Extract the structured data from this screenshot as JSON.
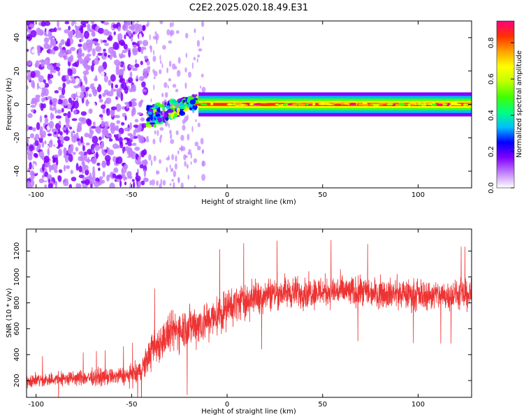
{
  "title": "C2E2.2025.020.18.49.E31",
  "chart_data": [
    {
      "type": "heatmap",
      "xlabel": "Height of straight line (km)",
      "ylabel": "Frequency (Hz)",
      "xlim": [
        -105,
        128
      ],
      "ylim": [
        -50,
        50
      ],
      "x_ticks": [
        -100,
        -50,
        0,
        50,
        100
      ],
      "y_ticks": [
        -40,
        -20,
        0,
        20,
        40
      ],
      "x_tick_labels": [
        "-100",
        "-50",
        "0",
        "50",
        "100"
      ],
      "y_tick_labels": [
        "-40",
        "-20",
        "0",
        "20",
        "40"
      ],
      "colorbar": {
        "label": "Normalized spectral amplitude",
        "range": [
          0,
          0.92
        ],
        "ticks": [
          0.0,
          0.2,
          0.4,
          0.6,
          0.8
        ],
        "tick_labels": [
          "0.0",
          "0.2",
          "0.4",
          "0.6",
          "0.8"
        ],
        "colormap": [
          "#ffffff",
          "#c080ff",
          "#8000ff",
          "#0000ff",
          "#00c0ff",
          "#00ff80",
          "#40ff00",
          "#c0ff00",
          "#ffff00",
          "#ffa000",
          "#ff3000",
          "#ff0080"
        ]
      },
      "features": [
        {
          "x_range": [
            -105,
            -42
          ],
          "freq_range": [
            -50,
            50
          ],
          "amplitude": 0.1,
          "kind": "broadband noise"
        },
        {
          "x_range": [
            -42,
            -15
          ],
          "freq_range": [
            -15,
            8
          ],
          "amplitude": 0.35,
          "kind": "emerging signal"
        },
        {
          "x_range": [
            -15,
            128
          ],
          "center_freq": 0,
          "bandwidth": 4,
          "amplitude": 0.85,
          "kind": "narrow-band signal"
        }
      ]
    },
    {
      "type": "line",
      "xlabel": "Height of straight line (km)",
      "ylabel": "SNR (10 * v/v)",
      "xlim": [
        -105,
        128
      ],
      "ylim": [
        70,
        1370
      ],
      "x_ticks": [
        -100,
        -50,
        0,
        50,
        100
      ],
      "y_ticks": [
        200,
        400,
        600,
        800,
        1000,
        1200
      ],
      "x_tick_labels": [
        "-100",
        "-50",
        "0",
        "50",
        "100"
      ],
      "y_tick_labels": [
        "200",
        "400",
        "600",
        "800",
        "1000",
        "1200"
      ],
      "color": "#ee3333",
      "x": [
        -105,
        -90,
        -75,
        -60,
        -50,
        -45,
        -40,
        -35,
        -30,
        -25,
        -20,
        -15,
        -10,
        -5,
        0,
        5,
        10,
        15,
        20,
        30,
        40,
        50,
        60,
        70,
        80,
        90,
        100,
        110,
        120,
        128
      ],
      "y": [
        200,
        210,
        220,
        230,
        240,
        270,
        420,
        500,
        560,
        600,
        620,
        640,
        660,
        700,
        760,
        800,
        820,
        840,
        870,
        880,
        880,
        890,
        890,
        880,
        880,
        870,
        860,
        860,
        860,
        860
      ],
      "spread": [
        80,
        85,
        90,
        95,
        110,
        140,
        200,
        220,
        230,
        240,
        240,
        240,
        240,
        230,
        220,
        210,
        200,
        190,
        190,
        180,
        180,
        180,
        180,
        170,
        170,
        170,
        170,
        170,
        170,
        170
      ]
    }
  ]
}
